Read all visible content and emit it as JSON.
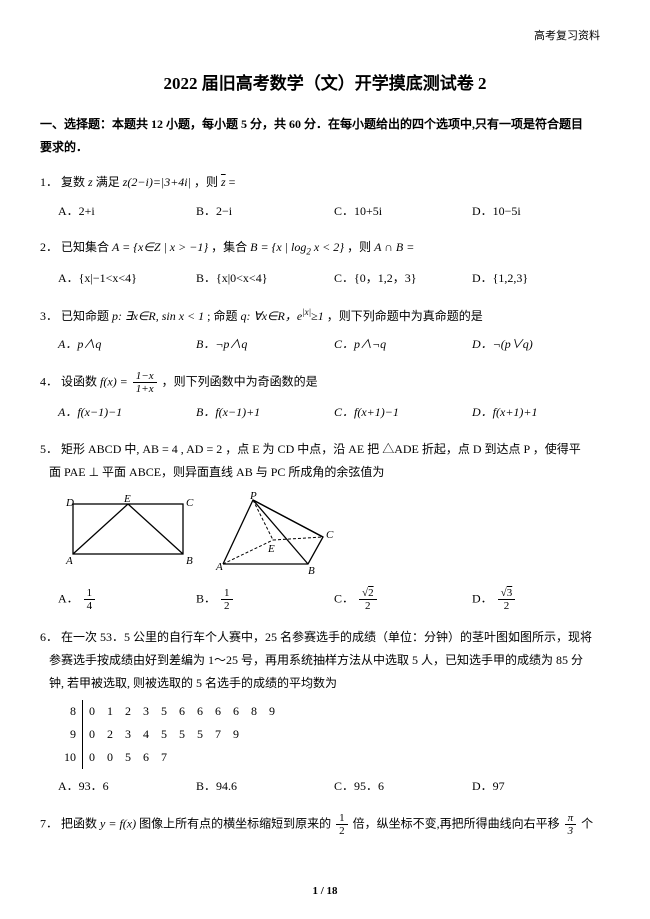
{
  "header": {
    "top_right": "高考复习资料"
  },
  "title": "2022 届旧高考数学（文）开学摸底测试卷 2",
  "section_heading": {
    "line1": "一、选择题：本题共 12 小题，每小题 5 分，共 60 分．在每小题给出的四个选项中,只有一项是符合题目",
    "line2": "要求的．"
  },
  "q1": {
    "num": "1．",
    "text_a": "复数 ",
    "text_b": " 满足 ",
    "expr": "z(2−i)=|3+4i|",
    "text_c": "，则 ",
    "text_d": " =",
    "opts": {
      "A": "A．2+i",
      "B": "B．2−i",
      "C": "C．10+5i",
      "D": "D．10−5i"
    }
  },
  "q2": {
    "num": "2．",
    "text_a": "已知集合 ",
    "setA": "A = {x∈Z | x > −1}",
    "text_b": "，集合 ",
    "setB_pre": "B = {x | log",
    "setB_sub": "2",
    "setB_post": " x < 2}",
    "text_c": "，则 ",
    "text_d": "A ∩ B =",
    "opts": {
      "A": "A．{x|−1<x<4}",
      "B": "B．{x|0<x<4}",
      "C": "C．{0，1,2，3}",
      "D": "D．{1,2,3}"
    }
  },
  "q3": {
    "num": "3．",
    "text_a": "已知命题 ",
    "p": "p: ∃x∈R, sin x < 1",
    "text_b": "; 命题 ",
    "q_pre": "q: ∀x∈R，e",
    "q_sup": "|x|",
    "q_post": "≥1",
    "text_c": "，则下列命题中为真命题的是",
    "opts": {
      "A": "A．p∧q",
      "B": "B．¬p∧q",
      "C": "C．p∧¬q",
      "D": "D．¬(p∨q)"
    }
  },
  "q4": {
    "num": "4．",
    "text_a": "设函数 ",
    "fx": "f(x) = ",
    "frac_num": "1−x",
    "frac_den": "1+x",
    "text_b": "，则下列函数中为奇函数的是",
    "opts": {
      "A": "A．f(x−1)−1",
      "B": "B．f(x−1)+1",
      "C": "C．f(x+1)−1",
      "D": "D．f(x+1)+1"
    }
  },
  "q5": {
    "num": "5．",
    "line1": "矩形 ABCD 中, AB = 4 , AD = 2 ，点 E 为 CD 中点，沿 AE 把 △ADE 折起，点 D 到达点 P ，使得平",
    "line2": "面 PAE ⊥ 平面 ABCE，则异面直线 AB 与 PC 所成角的余弦值为",
    "labels": {
      "D": "D",
      "E": "E",
      "C": "C",
      "A": "A",
      "B": "B",
      "P": "P",
      "A2": "A",
      "B2": "B",
      "C2": "C",
      "E2": "E"
    },
    "optA_label": "A．",
    "optA_num": "1",
    "optA_den": "4",
    "optB_label": "B．",
    "optB_num": "1",
    "optB_den": "2",
    "optC_label": "C．",
    "optC_num": "2",
    "optC_den": "2",
    "optD_label": "D．",
    "optD_num": "3",
    "optD_den": "2",
    "figure": {
      "rect": {
        "stroke": "#000000",
        "fill": "none",
        "stroke_width": 1.3
      },
      "tet": {
        "stroke": "#000000",
        "fill": "none",
        "stroke_width": 1.3,
        "dash": "3 2"
      }
    }
  },
  "q6": {
    "num": "6．",
    "line1": "在一次 53．5 公里的自行车个人赛中，25 名参赛选手的成绩（单位：分钟）的茎叶图如图所示，现将",
    "line2": "参赛选手按成绩由好到差编为 1～25 号，再用系统抽样方法从中选取 5 人，已知选手甲的成绩为 85 分",
    "line3": "钟, 若甲被选取, 则被选取的 5 名选手的成绩的平均数为",
    "stemleaf": {
      "stems": [
        "8",
        "9",
        "10"
      ],
      "leaves": [
        [
          "0",
          "1",
          "2",
          "3",
          "5",
          "6",
          "6",
          "6",
          "6",
          "8",
          "9"
        ],
        [
          "0",
          "2",
          "3",
          "4",
          "5",
          "5",
          "5",
          "7",
          "9"
        ],
        [
          "0",
          "0",
          "5",
          "6",
          "7"
        ]
      ]
    },
    "opts": {
      "A": "A．93．6",
      "B": "B．94.6",
      "C": "C．95．6",
      "D": "D．97"
    }
  },
  "q7": {
    "num": "7．",
    "text_a": "把函数 ",
    "fx": "y = f(x)",
    "text_b": " 图像上所有点的横坐标缩短到原来的 ",
    "frac1_num": "1",
    "frac1_den": "2",
    "text_c": " 倍，纵坐标不变,再把所得曲线向右平移 ",
    "frac2_num": "π",
    "frac2_den": "3",
    "text_d": " 个"
  },
  "footer": "1 / 18"
}
